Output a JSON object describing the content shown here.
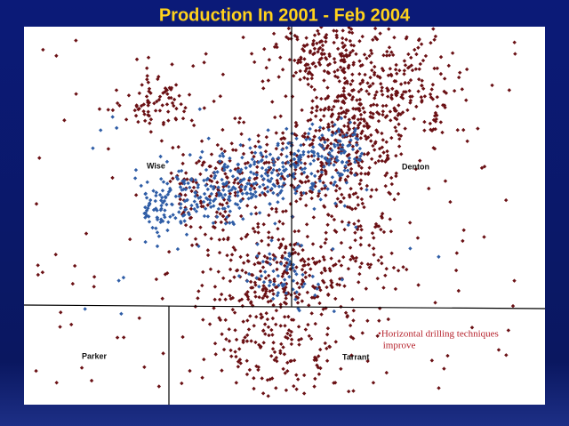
{
  "title": "Production In 2001 -  Feb 2004",
  "map": {
    "counties": {
      "wise": "Wise",
      "denton": "Denton",
      "parker": "Parker",
      "tarrant": "Tarrant"
    },
    "annotation": [
      "•Horizontal drilling techniques",
      " improve"
    ]
  }
}
